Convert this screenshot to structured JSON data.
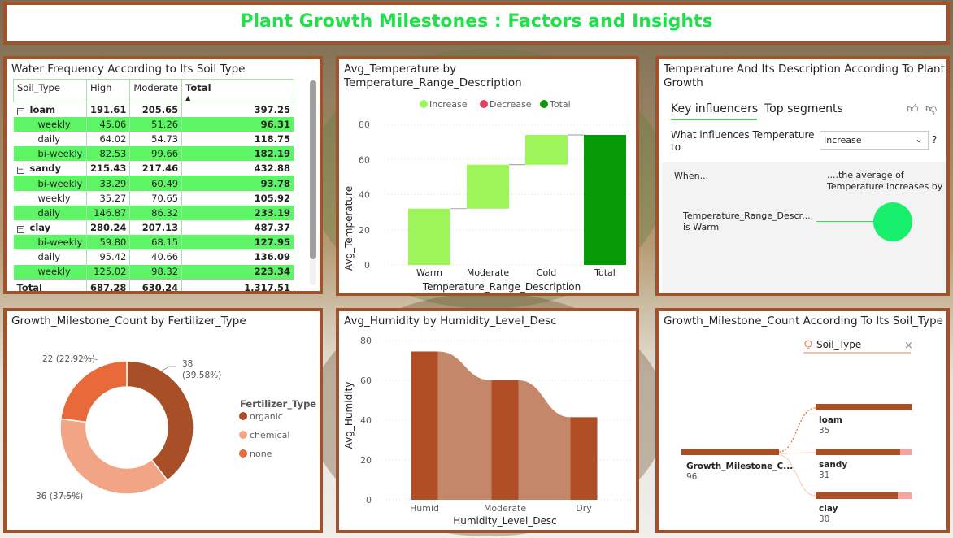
{
  "header": {
    "title": "Plant Growth Milestones : Factors and Insights"
  },
  "water_matrix": {
    "title": "Water Frequency According to Its Soil Type",
    "columns": [
      "Soil_Type",
      "High",
      "Moderate",
      "Total"
    ],
    "rows": [
      {
        "label": "loam",
        "high": "191.61",
        "moderate": "205.65",
        "total": "397.25",
        "type": "group",
        "expander": "⊟"
      },
      {
        "label": "weekly",
        "high": "45.06",
        "moderate": "51.26",
        "total": "96.31",
        "type": "child green"
      },
      {
        "label": "daily",
        "high": "64.02",
        "moderate": "54.73",
        "total": "118.75",
        "type": "child"
      },
      {
        "label": "bi-weekly",
        "high": "82.53",
        "moderate": "99.66",
        "total": "182.19",
        "type": "child green"
      },
      {
        "label": "sandy",
        "high": "215.43",
        "moderate": "217.46",
        "total": "432.88",
        "type": "group",
        "expander": "⊟"
      },
      {
        "label": "bi-weekly",
        "high": "33.29",
        "moderate": "60.49",
        "total": "93.78",
        "type": "child green"
      },
      {
        "label": "weekly",
        "high": "35.27",
        "moderate": "70.65",
        "total": "105.92",
        "type": "child"
      },
      {
        "label": "daily",
        "high": "146.87",
        "moderate": "86.32",
        "total": "233.19",
        "type": "child green"
      },
      {
        "label": "clay",
        "high": "280.24",
        "moderate": "207.13",
        "total": "487.37",
        "type": "group",
        "expander": "⊟"
      },
      {
        "label": "bi-weekly",
        "high": "59.80",
        "moderate": "68.15",
        "total": "127.95",
        "type": "child green"
      },
      {
        "label": "daily",
        "high": "95.42",
        "moderate": "40.66",
        "total": "136.09",
        "type": "child"
      },
      {
        "label": "weekly",
        "high": "125.02",
        "moderate": "98.32",
        "total": "223.34",
        "type": "child green"
      }
    ],
    "total_row": {
      "label": "Total",
      "high": "687.28",
      "moderate": "630.24",
      "total": "1,317.51"
    }
  },
  "temperature_panel": {
    "title_line1": "Avg_Temperature by",
    "title_line2": "Temperature_Range_Description",
    "legend": [
      {
        "label": "Increase",
        "color": "#9ef55a"
      },
      {
        "label": "Decrease",
        "color": "#e0425a"
      },
      {
        "label": "Total",
        "color": "#079a07"
      }
    ]
  },
  "key_influencers": {
    "title_line1": "Temperature And Its Description According To Plant",
    "title_line2": "Growth",
    "tab_active": "Key influencers",
    "tab_other": "Top segments",
    "question_line1": "What influences Temperature",
    "question_line2": "to",
    "select_value": "Increase",
    "help": "?",
    "when_label": "When...",
    "avg_line1": "....the average of",
    "avg_line2": "Temperature increases by",
    "factor_line1": "Temperature_Range_Descr...",
    "factor_line2": "is Warm"
  },
  "fertilizer_panel": {
    "title": "Growth_Milestone_Count by Fertilizer_Type",
    "legend_title": "Fertilizer_Type",
    "label_organic_1": "38",
    "label_organic_2": "(39.58%)",
    "label_chemical": "36 (37.5%)",
    "label_none": "22 (22.92%)"
  },
  "humidity_panel": {
    "title": "Avg_Humidity by Humidity_Level_Desc"
  },
  "decomp_panel": {
    "title": "Growth_Milestone_Count According To Its Soil_Type",
    "filter_label": "Soil_Type",
    "root_label": "Growth_Milestone_C...",
    "root_value": "96",
    "nodes": [
      {
        "label": "loam",
        "value": "35"
      },
      {
        "label": "sandy",
        "value": "31"
      },
      {
        "label": "clay",
        "value": "30"
      }
    ]
  },
  "chart_data": [
    {
      "type": "bar",
      "subtype": "waterfall",
      "title": "Avg_Temperature by Temperature_Range_Description",
      "xlabel": "Temperature_Range_Description",
      "ylabel": "Avg_Temperature",
      "categories": [
        "Warm",
        "Moderate",
        "Cold",
        "Total"
      ],
      "values": [
        32,
        25,
        17,
        74
      ],
      "ylim": [
        0,
        80
      ],
      "yticks": [
        0,
        20,
        40,
        60,
        80
      ],
      "grid": true,
      "legend": "top"
    },
    {
      "type": "pie",
      "subtype": "donut",
      "title": "Growth_Milestone_Count by Fertilizer_Type",
      "categories": [
        "organic",
        "chemical",
        "none"
      ],
      "values": [
        38,
        36,
        22
      ],
      "colors": [
        "#a94f27",
        "#f2a585",
        "#e8693a"
      ],
      "legend": "right"
    },
    {
      "type": "bar",
      "subtype": "ribbon",
      "title": "Avg_Humidity by Humidity_Level_Desc",
      "xlabel": "Humidity_Level_Desc",
      "ylabel": "Avg_Humidity",
      "categories": [
        "Humid",
        "Moderate",
        "Dry"
      ],
      "values": [
        74.5,
        60,
        41.5
      ],
      "ylim": [
        0,
        80
      ],
      "yticks": [
        0,
        20,
        40,
        60,
        80
      ],
      "grid": true
    }
  ]
}
